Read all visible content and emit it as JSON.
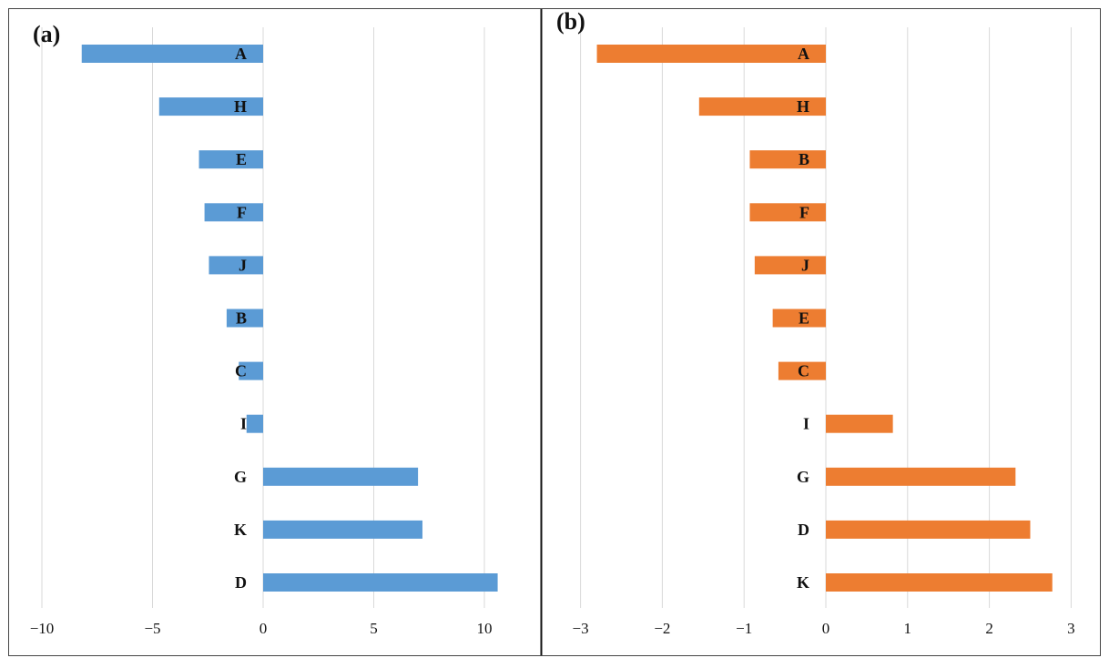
{
  "chart_data": [
    {
      "type": "bar",
      "orientation": "horizontal",
      "panel_label": "(a)",
      "categories": [
        "A",
        "H",
        "E",
        "F",
        "J",
        "B",
        "C",
        "I",
        "G",
        "K",
        "D"
      ],
      "values": [
        -8.2,
        -4.7,
        -2.9,
        -2.65,
        -2.45,
        -1.65,
        -1.1,
        -0.75,
        7.0,
        7.2,
        10.6
      ],
      "xlim": [
        -10,
        12
      ],
      "xticks": [
        -10,
        -5,
        0,
        5,
        10
      ],
      "grid": "vertical",
      "color": "#5B9BD5"
    },
    {
      "type": "bar",
      "orientation": "horizontal",
      "panel_label": "(b)",
      "categories": [
        "A",
        "H",
        "B",
        "F",
        "J",
        "E",
        "C",
        "I",
        "G",
        "D",
        "K"
      ],
      "values": [
        -2.8,
        -1.55,
        -0.93,
        -0.93,
        -0.87,
        -0.65,
        -0.58,
        0.82,
        2.32,
        2.5,
        2.77
      ],
      "xlim": [
        -3.3,
        3.0
      ],
      "xticks": [
        -3,
        -2,
        -1,
        0,
        1,
        2,
        3
      ],
      "grid": "vertical",
      "color": "#ED7D31"
    }
  ]
}
